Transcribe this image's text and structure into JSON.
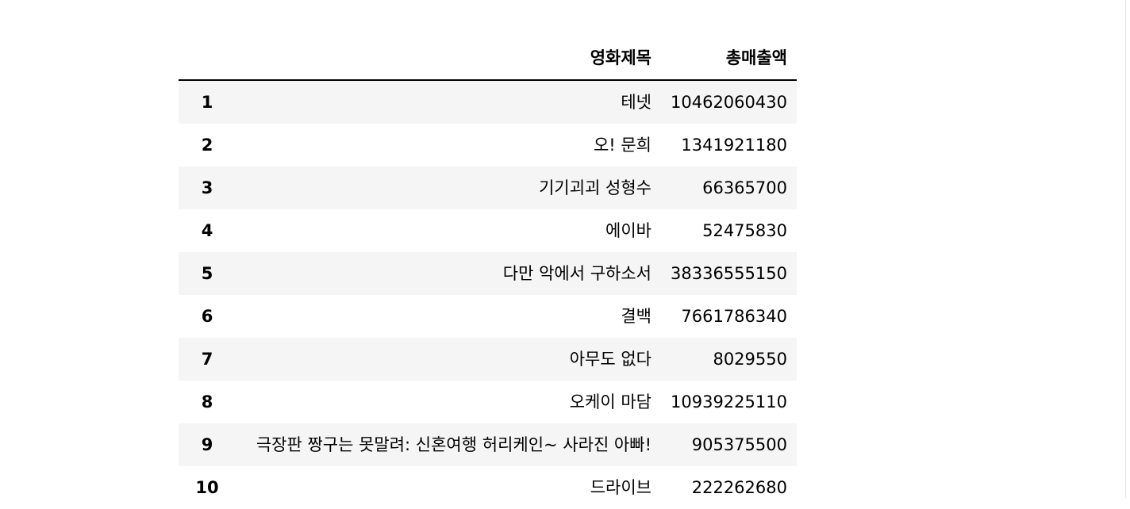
{
  "table": {
    "columns": [
      "영화제목",
      "총매출액"
    ],
    "rows": [
      {
        "index": "1",
        "title": "테넷",
        "sales": "10462060430"
      },
      {
        "index": "2",
        "title": "오! 문희",
        "sales": "1341921180"
      },
      {
        "index": "3",
        "title": "기기괴괴 성형수",
        "sales": "66365700"
      },
      {
        "index": "4",
        "title": "에이바",
        "sales": "52475830"
      },
      {
        "index": "5",
        "title": "다만 악에서 구하소서",
        "sales": "38336555150"
      },
      {
        "index": "6",
        "title": "결백",
        "sales": "7661786340"
      },
      {
        "index": "7",
        "title": "아무도 없다",
        "sales": "8029550"
      },
      {
        "index": "8",
        "title": "오케이 마담",
        "sales": "10939225110"
      },
      {
        "index": "9",
        "title": "극장판 짱구는 못말려: 신혼여행 허리케인~ 사라진 아빠!",
        "sales": "905375500"
      },
      {
        "index": "10",
        "title": "드라이브",
        "sales": "222262680"
      }
    ]
  },
  "colors": {
    "stripe": "#f5f5f5",
    "header_rule": "#000000"
  }
}
